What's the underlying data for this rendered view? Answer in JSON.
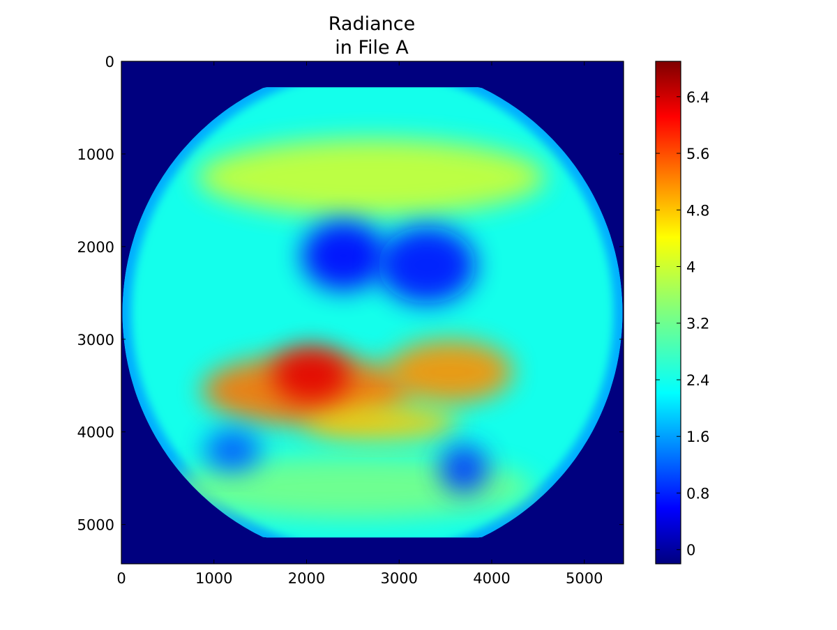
{
  "chart_data": {
    "type": "heatmap",
    "title": [
      "Radiance",
      "in File A"
    ],
    "xlabel": "",
    "ylabel": "",
    "xlim": [
      0,
      5424
    ],
    "ylim": [
      5424,
      0
    ],
    "xticks": [
      "0",
      "1000",
      "2000",
      "3000",
      "4000",
      "5000"
    ],
    "xtick_values": [
      0,
      1000,
      2000,
      3000,
      4000,
      5000
    ],
    "yticks": [
      "0",
      "1000",
      "2000",
      "3000",
      "4000",
      "5000"
    ],
    "ytick_values": [
      0,
      1000,
      2000,
      3000,
      4000,
      5000
    ],
    "colorbar": {
      "range": [
        -0.2,
        6.9
      ],
      "ticks": [
        "0",
        "0.8",
        "1.6",
        "2.4",
        "3.2",
        "4",
        "4.8",
        "5.6",
        "6.4"
      ],
      "tick_values": [
        0,
        0.8,
        1.6,
        2.4,
        3.2,
        4.0,
        4.8,
        5.6,
        6.4
      ],
      "colormap": "jet"
    },
    "background_value": -0.2,
    "disk": {
      "center": [
        2712,
        2712
      ],
      "radius": 2700,
      "clipped_top": 280,
      "clipped_bottom": 5140
    },
    "features": [
      {
        "name": "central warm region",
        "center": [
          2050,
          3380
        ],
        "value": 6.2
      },
      {
        "name": "warm band west",
        "center": [
          2000,
          3550
        ],
        "value": 5.2
      },
      {
        "name": "warm band east",
        "center": [
          3550,
          3350
        ],
        "value": 5.0
      },
      {
        "name": "south streak",
        "center": [
          2800,
          3900
        ],
        "value": 4.6
      },
      {
        "name": "northern belt",
        "center": [
          2700,
          1250
        ],
        "value": 3.9
      },
      {
        "name": "southern belt",
        "center": [
          2500,
          4600
        ],
        "value": 3.3
      },
      {
        "name": "cold cluster west",
        "center": [
          2400,
          2100
        ],
        "value": 0.7
      },
      {
        "name": "cold cluster east",
        "center": [
          3300,
          2200
        ],
        "value": 0.8
      },
      {
        "name": "cold patch southeast",
        "center": [
          3700,
          4400
        ],
        "value": 1.1
      },
      {
        "name": "cold patch southwest",
        "center": [
          1200,
          4200
        ],
        "value": 1.3
      }
    ]
  }
}
